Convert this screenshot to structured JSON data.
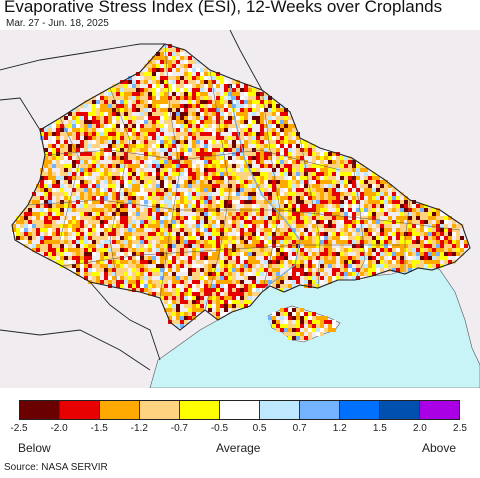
{
  "header": {
    "title": "Evaporative Stress Index (ESI), 12-Weeks over Croplands",
    "date_range": "Mar. 27 - Jun. 18, 2025"
  },
  "legend": {
    "colors": [
      "#6b0000",
      "#e60000",
      "#ffaa00",
      "#ffd37f",
      "#ffff00",
      "#ffffff",
      "#bee8ff",
      "#73b2ff",
      "#0070ff",
      "#0050b0",
      "#a900e6"
    ],
    "tick_labels": [
      "-2.5",
      "-2.0",
      "-1.5",
      "-1.2",
      "-0.7",
      "-0.5",
      "0.5",
      "0.7",
      "1.2",
      "1.5",
      "2.0",
      "2.5"
    ],
    "below_label": "Below",
    "average_label": "Average",
    "above_label": "Above"
  },
  "map": {
    "land_color": "#f0ecf0",
    "sea_color": "#c8f4f8",
    "border_color": "#333333"
  },
  "footer": {
    "source": "Source: NASA SERVIR"
  }
}
